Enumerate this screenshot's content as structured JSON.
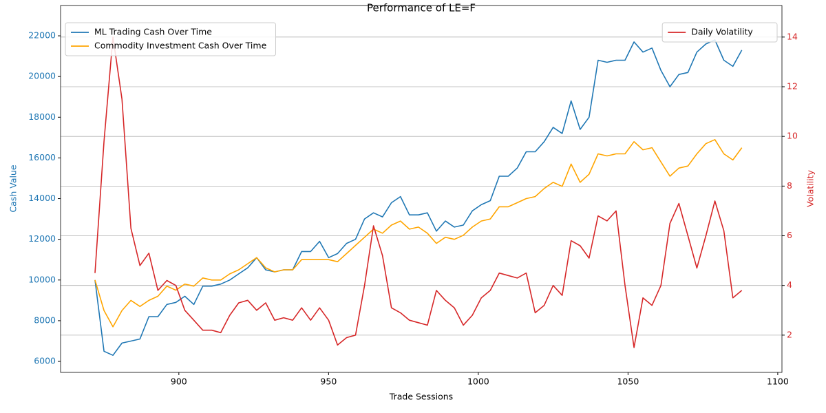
{
  "chart_data": {
    "type": "line",
    "title": "Performance of LE=F",
    "xlabel": "Trade Sessions",
    "ylabel": "Cash Value",
    "y2label": "Volatility",
    "x": [
      872,
      875,
      878,
      881,
      884,
      887,
      890,
      893,
      896,
      899,
      902,
      905,
      908,
      911,
      914,
      917,
      920,
      923,
      926,
      929,
      932,
      935,
      938,
      941,
      944,
      947,
      950,
      953,
      956,
      959,
      962,
      965,
      968,
      971,
      974,
      977,
      980,
      983,
      986,
      989,
      992,
      995,
      998,
      1001,
      1004,
      1007,
      1010,
      1013,
      1016,
      1019,
      1022,
      1025,
      1028,
      1031,
      1034,
      1037,
      1040,
      1043,
      1046,
      1049,
      1052,
      1055,
      1058,
      1061,
      1064,
      1067,
      1070,
      1073,
      1076,
      1079,
      1082,
      1085,
      1088
    ],
    "series": [
      {
        "name": "ML Trading Cash Over Time",
        "color": "#1f77b4",
        "axis": "y",
        "values": [
          10000,
          6500,
          6300,
          6900,
          7000,
          7100,
          8200,
          8200,
          8800,
          8900,
          9200,
          8800,
          9700,
          9700,
          9800,
          10000,
          10300,
          10600,
          11100,
          10500,
          10400,
          10500,
          10500,
          11400,
          11400,
          11900,
          11100,
          11300,
          11800,
          12000,
          13000,
          13300,
          13100,
          13800,
          14100,
          13200,
          13200,
          13300,
          12400,
          12900,
          12600,
          12700,
          13400,
          13700,
          13900,
          15100,
          15100,
          15500,
          16300,
          16300,
          16800,
          17500,
          17200,
          18800,
          17400,
          18000,
          20800,
          20700,
          20800,
          20800,
          21700,
          21200,
          21400,
          20300,
          19500,
          20100,
          20200,
          21200,
          21600,
          21800,
          20800,
          20500,
          21300
        ]
      },
      {
        "name": "Commodity Investment Cash Over Time",
        "color": "#ffa500",
        "axis": "y",
        "values": [
          10000,
          8500,
          7700,
          8500,
          9000,
          8700,
          9000,
          9200,
          9700,
          9500,
          9800,
          9700,
          10100,
          10000,
          10000,
          10300,
          10500,
          10800,
          11100,
          10600,
          10400,
          10500,
          10500,
          11000,
          11000,
          11000,
          11000,
          10900,
          11300,
          11700,
          12100,
          12500,
          12300,
          12700,
          12900,
          12500,
          12600,
          12300,
          11800,
          12100,
          12000,
          12200,
          12600,
          12900,
          13000,
          13600,
          13600,
          13800,
          14000,
          14100,
          14500,
          14800,
          14600,
          15700,
          14800,
          15200,
          16200,
          16100,
          16200,
          16200,
          16800,
          16400,
          16500,
          15800,
          15100,
          15500,
          15600,
          16200,
          16700,
          16900,
          16200,
          15900,
          16500
        ]
      },
      {
        "name": "Daily Volatility",
        "color": "#d62728",
        "axis": "y2",
        "values": [
          4.5,
          9.8,
          14.0,
          11.5,
          6.3,
          4.8,
          5.3,
          3.8,
          4.2,
          4.0,
          3.0,
          2.6,
          2.2,
          2.2,
          2.1,
          2.8,
          3.3,
          3.4,
          3.0,
          3.3,
          2.6,
          2.7,
          2.6,
          3.1,
          2.6,
          3.1,
          2.6,
          1.6,
          1.9,
          2.0,
          4.0,
          6.4,
          5.2,
          3.1,
          2.9,
          2.6,
          2.5,
          2.4,
          3.8,
          3.4,
          3.1,
          2.4,
          2.8,
          3.5,
          3.8,
          4.5,
          4.4,
          4.3,
          4.5,
          2.9,
          3.2,
          4.0,
          3.6,
          5.8,
          5.6,
          5.1,
          6.8,
          6.6,
          7.0,
          4.0,
          1.5,
          3.5,
          3.2,
          4.0,
          6.5,
          7.3,
          6.0,
          4.7,
          6.0,
          7.4,
          6.2,
          3.5,
          3.8
        ]
      }
    ],
    "xlim": [
      860.5,
      1101.4
    ],
    "xticks": [
      900,
      950,
      1000,
      1050,
      1100
    ],
    "ylim": [
      5460,
      23490
    ],
    "yticks": [
      6000,
      8000,
      10000,
      12000,
      14000,
      16000,
      18000,
      20000,
      22000
    ],
    "y2lim": [
      0.5,
      15.27
    ],
    "y2ticks": [
      2,
      4,
      6,
      8,
      10,
      12,
      14
    ],
    "grid": "y2",
    "legend": "upper left",
    "y2_legend": "upper right"
  }
}
